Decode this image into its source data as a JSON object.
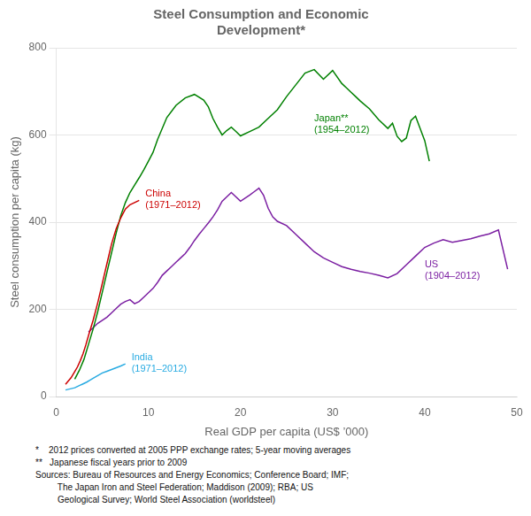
{
  "chart_data": {
    "type": "line",
    "title": "Steel Consumption and Economic\nDevelopment*",
    "xlabel": "Real GDP per capita (US$ ’000)",
    "ylabel": "Steel consumption per capita (kg)",
    "xlim": [
      0,
      50
    ],
    "ylim": [
      0,
      800
    ],
    "xticks": [
      0,
      10,
      20,
      30,
      40,
      50
    ],
    "yticks": [
      0,
      200,
      400,
      600,
      800
    ],
    "grid": "y",
    "series": [
      {
        "color": "#cc0000",
        "annotation": "China\n(1971–2012)",
        "x": [
          1.0,
          1.2,
          1.4,
          1.6,
          1.8,
          2.0,
          2.3,
          2.6,
          2.9,
          3.2,
          3.5,
          4.0,
          4.5,
          5.0,
          5.5,
          6.0,
          6.5,
          7.0,
          7.5,
          8.0,
          8.5,
          9.0
        ],
        "values": [
          28,
          33,
          38,
          43,
          50,
          57,
          68,
          82,
          98,
          118,
          140,
          175,
          215,
          260,
          305,
          350,
          385,
          410,
          430,
          440,
          445,
          450
        ]
      },
      {
        "color": "#29abe2",
        "annotation": "India\n(1971–2012)",
        "x": [
          1.0,
          1.2,
          1.4,
          1.6,
          1.8,
          2.0,
          2.2,
          2.4,
          2.6,
          2.8,
          3.0,
          3.3,
          3.6,
          4.0,
          4.5,
          5.0,
          5.5,
          6.0,
          6.5,
          7.0,
          7.5
        ],
        "values": [
          15,
          16,
          17,
          18,
          19,
          20,
          22,
          24,
          26,
          28,
          30,
          33,
          37,
          42,
          48,
          54,
          58,
          62,
          66,
          70,
          75
        ]
      },
      {
        "color": "#008000",
        "annotation": "Japan**\n(1954–2012)",
        "x": [
          2.0,
          2.5,
          3.0,
          3.5,
          4.0,
          4.5,
          5.0,
          5.5,
          6.0,
          6.5,
          7.0,
          7.5,
          8.0,
          8.5,
          9.0,
          9.5,
          10.0,
          10.5,
          11.0,
          12.0,
          13.0,
          14.0,
          15.0,
          16.0,
          16.5,
          17.0,
          17.5,
          18.0,
          18.5,
          19.0,
          19.5,
          20.0,
          21.0,
          22.0,
          23.0,
          24.0,
          25.0,
          26.0,
          27.0,
          28.0,
          29.0,
          30.0,
          31.0,
          31.5,
          32.0,
          32.5,
          33.0,
          34.0,
          35.0,
          36.0,
          36.5,
          37.0,
          37.5,
          38.0,
          38.5,
          39.0,
          40.0,
          40.5
        ],
        "values": [
          40,
          60,
          85,
          120,
          155,
          195,
          240,
          285,
          330,
          375,
          415,
          445,
          468,
          485,
          502,
          520,
          540,
          560,
          590,
          640,
          668,
          685,
          693,
          680,
          665,
          638,
          618,
          600,
          610,
          618,
          608,
          598,
          608,
          618,
          638,
          658,
          688,
          715,
          742,
          750,
          728,
          748,
          718,
          708,
          698,
          688,
          678,
          660,
          635,
          615,
          627,
          597,
          585,
          593,
          633,
          643,
          587,
          540
        ]
      },
      {
        "color": "#7b1fa2",
        "annotation": "US\n(1904–2012)",
        "x": [
          3.5,
          4.0,
          4.5,
          5.0,
          5.5,
          6.0,
          6.5,
          7.0,
          7.5,
          8.0,
          8.5,
          9.0,
          9.5,
          10.0,
          10.5,
          11.0,
          11.5,
          12.0,
          12.5,
          13.0,
          13.5,
          14.0,
          14.5,
          15.0,
          15.5,
          16.0,
          16.5,
          17.0,
          17.5,
          18.0,
          18.5,
          19.0,
          20.0,
          21.0,
          21.5,
          22.0,
          22.5,
          23.0,
          23.5,
          24.0,
          25.0,
          26.0,
          27.0,
          28.0,
          29.0,
          30.0,
          31.0,
          32.0,
          33.0,
          34.0,
          35.0,
          36.0,
          37.0,
          38.0,
          39.0,
          40.0,
          41.0,
          42.0,
          43.0,
          44.0,
          45.0,
          46.0,
          47.0,
          48.0,
          49.0
        ],
        "values": [
          148,
          158,
          168,
          175,
          182,
          192,
          202,
          212,
          218,
          222,
          213,
          218,
          228,
          238,
          248,
          262,
          278,
          288,
          298,
          308,
          318,
          328,
          342,
          358,
          372,
          385,
          398,
          412,
          428,
          448,
          458,
          468,
          448,
          462,
          470,
          478,
          462,
          432,
          412,
          402,
          392,
          372,
          352,
          332,
          318,
          308,
          298,
          292,
          287,
          283,
          278,
          272,
          282,
          302,
          322,
          342,
          352,
          360,
          354,
          358,
          362,
          368,
          373,
          382,
          292
        ]
      }
    ],
    "footnote": "*    2012 prices converted at 2005 PPP exchange rates; 5-year moving averages\n**   Japanese fiscal years prior to 2009\nSources: Bureau of Resources and Energy Economics; Conference Board; IMF;\n         The Japan Iron and Steel Federation; Maddison (2009); RBA; US\n         Geological Survey; World Steel Association (worldsteel)"
  }
}
